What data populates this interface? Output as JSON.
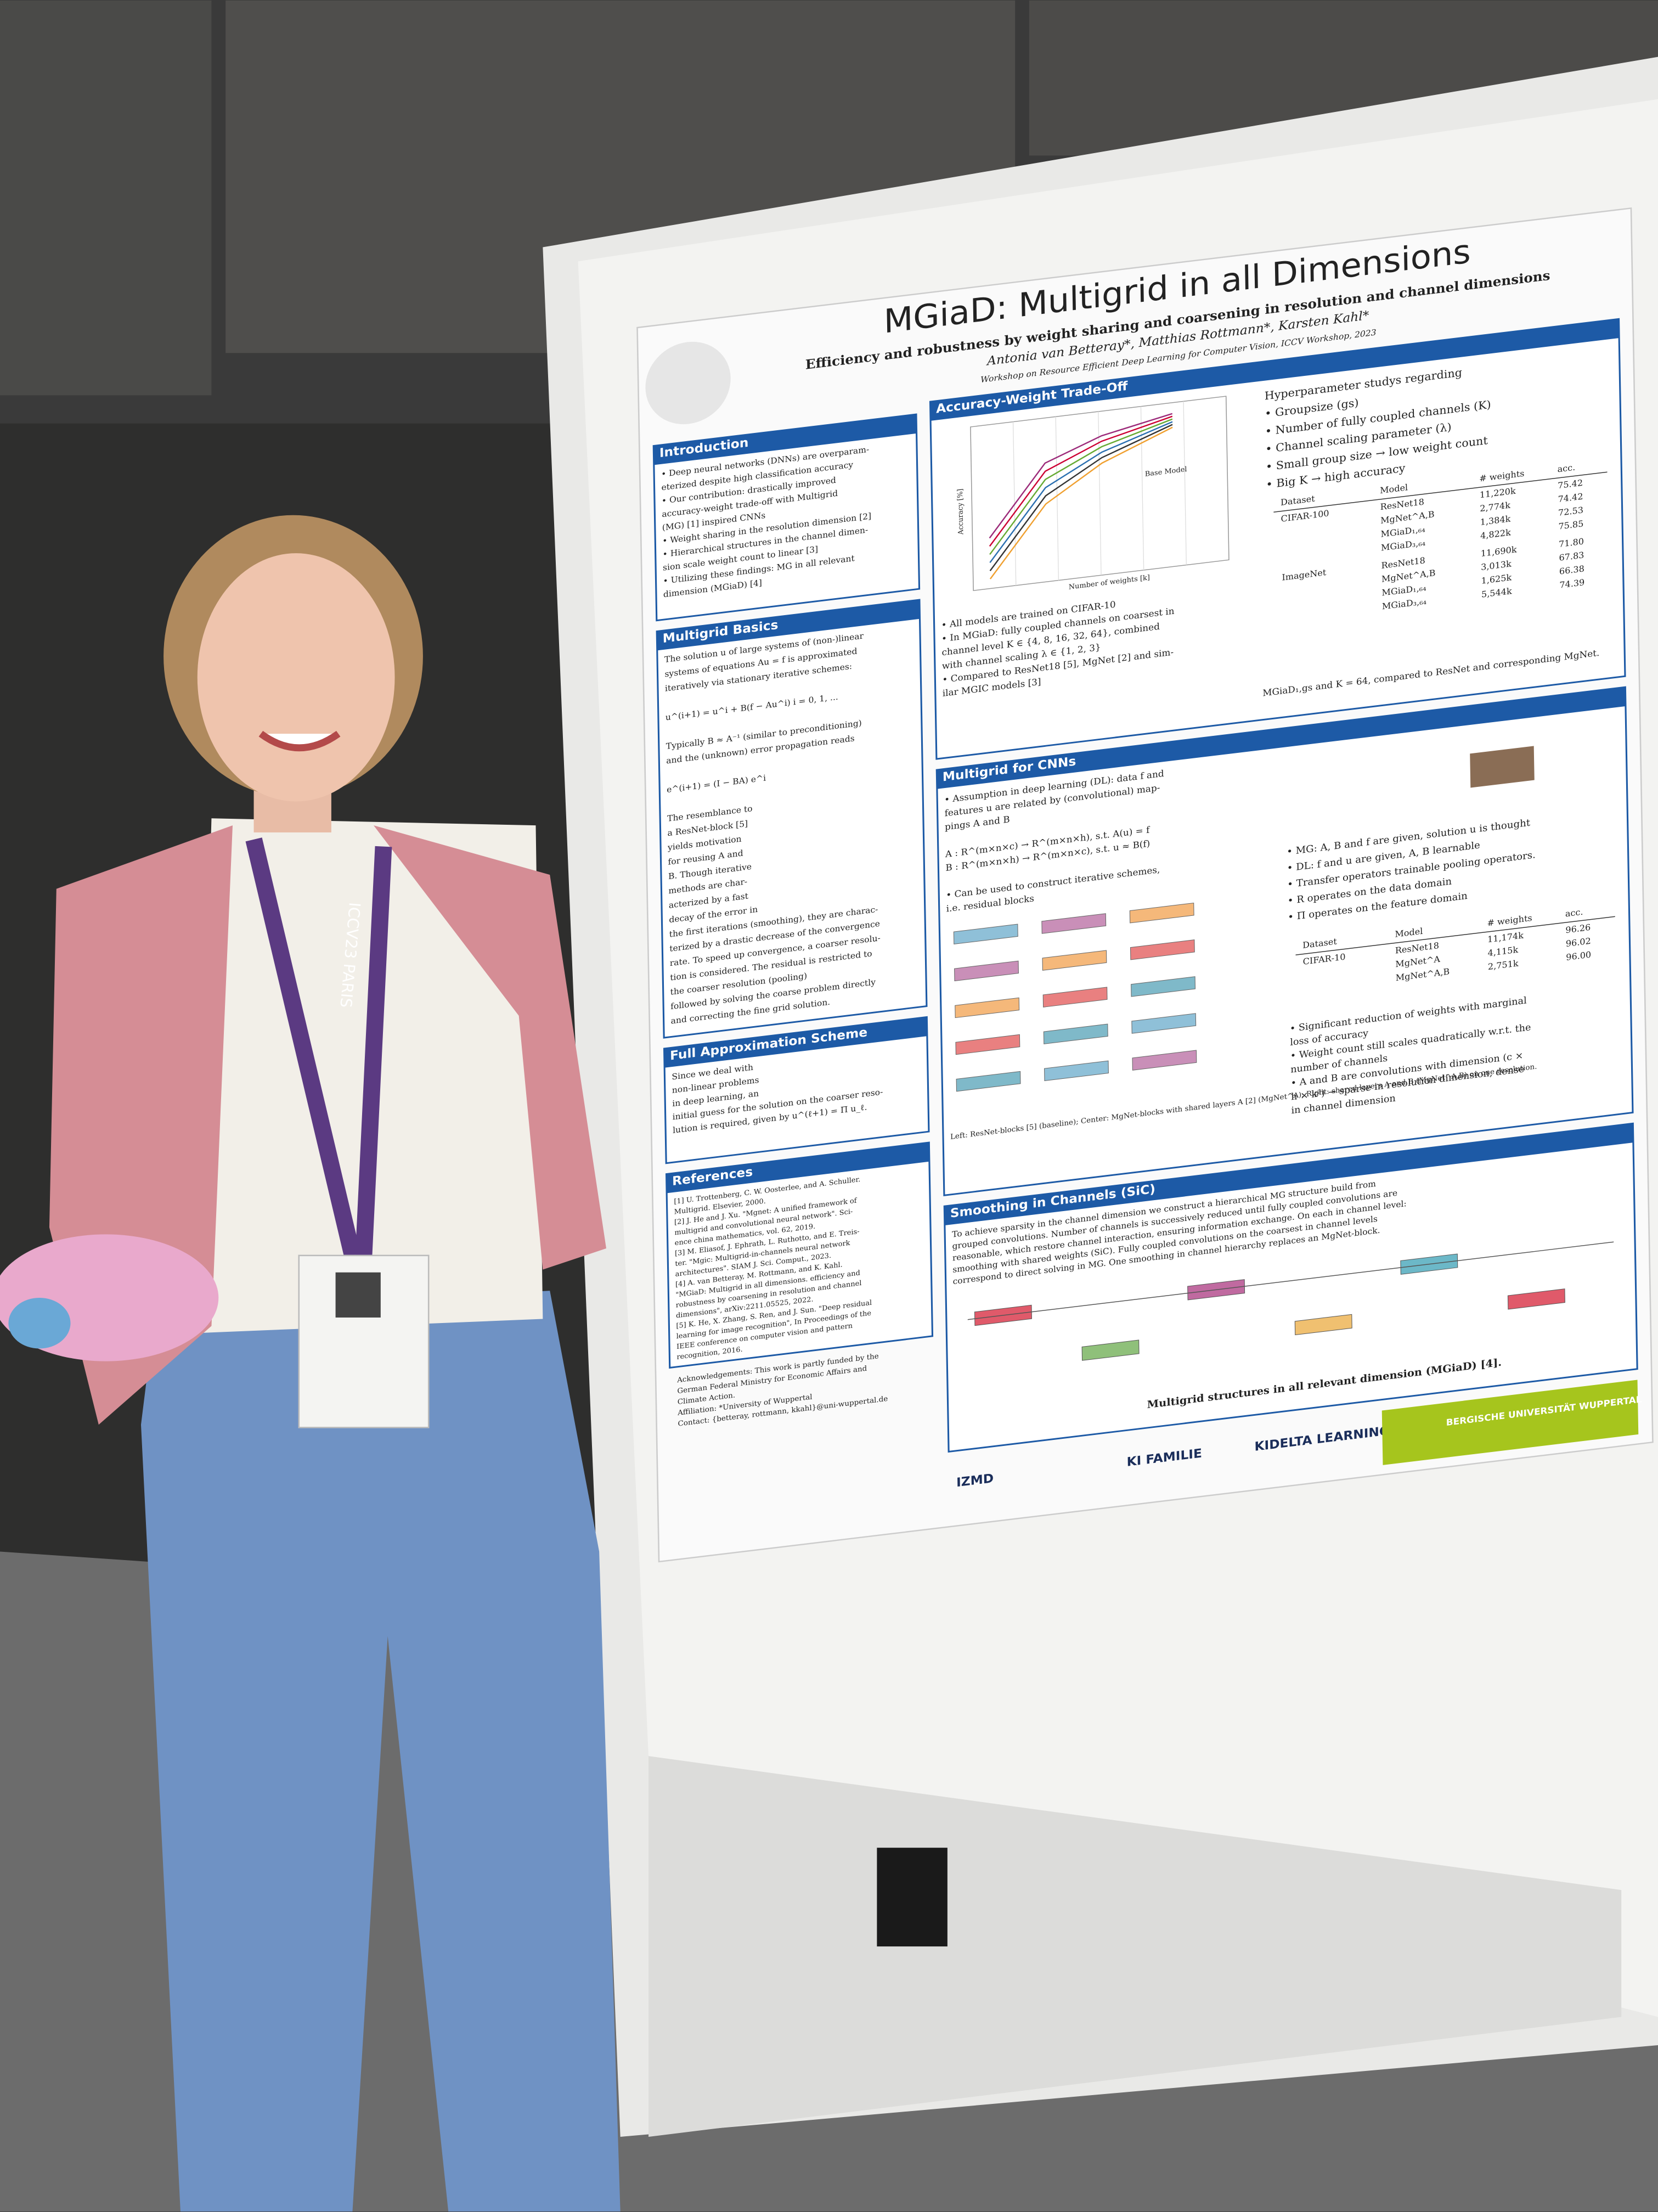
{
  "poster": {
    "title": "MGiaD: Multigrid in all Dimensions",
    "subtitle": "Efficiency and robustness by weight sharing and coarsening in resolution and channel dimensions",
    "authors": "Antonia van Betteray*, Matthias Rottmann*, Karsten Kahl*",
    "workshop": "Workshop on Resource Efficient Deep Learning for Computer Vision, ICCV Workshop, 2023",
    "sections": [
      {
        "heading": "Introduction",
        "lines": [
          "• Deep neural networks (DNNs) are overparam-",
          "  eterized despite high classification accuracy",
          "• Our contribution: drastically improved",
          "  accuracy-weight trade-off with Multigrid",
          "  (MG) [1] inspired CNNs",
          "• Weight sharing in the resolution dimension [2]",
          "• Hierarchical structures in the channel dimen-",
          "  sion scale weight count to linear [3]",
          "• Utilizing these findings: MG in all relevant",
          "  dimension (MGiaD) [4]"
        ]
      },
      {
        "heading": "Multigrid Basics",
        "lines": [
          "The solution u of large systems of (non-)linear",
          "systems of equations Au = f is approximated",
          "iteratively via stationary iterative schemes:",
          "",
          "u^(i+1) = u^i + B(f − Au^i)   i = 0, 1, ...",
          "",
          "Typically B ≈ A⁻¹ (similar to preconditioning)",
          "and the (unknown) error propagation reads",
          "",
          "e^(i+1) = (I − BA) e^i",
          "",
          "The resemblance to",
          "a ResNet-block [5]",
          "yields motivation",
          "for reusing A and",
          "B. Though iterative",
          "methods are char-",
          "acterized by a fast",
          "decay of the error in",
          "the first iterations (smoothing), they are charac-",
          "terized by a drastic decrease of the convergence",
          "rate. To speed up convergence, a coarser resolu-",
          "tion is considered. The residual is restricted to",
          "the coarser resolution (pooling)",
          "followed by solving the coarse problem directly",
          "and correcting the fine grid solution."
        ]
      },
      {
        "heading": "Full Approximation Scheme",
        "lines": [
          "Since we deal with",
          "non-linear problems",
          "in deep learning, an",
          "initial guess for the solution on the coarser reso-",
          "lution is required, given by u^(ℓ+1) = Π u_ℓ."
        ]
      },
      {
        "heading": "References",
        "lines": [
          "[1] U. Trottenberg, C. W. Oosterlee, and A. Schuller.",
          "    Multigrid. Elsevier, 2000.",
          "[2] J. He and J. Xu. \"Mgnet: A unified framework of",
          "    multigrid and convolutional neural network\". Sci-",
          "    ence china mathematics, vol. 62, 2019.",
          "[3] M. Eliasof, J. Ephrath, L. Ruthotto, and E. Treis-",
          "    ter. \"Mgic: Multigrid-in-channels neural network",
          "    architectures\". SIAM J. Sci. Comput., 2023.",
          "[4] A. van Betteray, M. Rottmann, and K. Kahl.",
          "    \"MGiaD: Multigrid in all dimensions. efficiency and",
          "    robustness by coarsening in resolution and channel",
          "    dimensions\", arXiv:2211.05525, 2022.",
          "[5] K. He, X. Zhang, S. Ren, and J. Sun. \"Deep residual",
          "    learning for image recognition\", In Proceedings of the",
          "    IEEE conference on computer vision and pattern",
          "    recognition, 2016."
        ]
      },
      {
        "heading": "Accuracy-Weight Trade-Off",
        "lines": [
          "• All models are trained on CIFAR-10",
          "• In MGiaD: fully coupled channels on coarsest in",
          "  channel level K ∈ {4, 8, 16, 32, 64}, combined",
          "  with channel scaling λ ∈ {1, 2, 3}",
          "• Compared to ResNet18 [5], MgNet [2] and sim-",
          "  ilar MGIC models [3]"
        ],
        "side": [
          "Hyperparameter studys regarding",
          "• Groupsize (gs)",
          "• Number of fully coupled channels (K)",
          "• Channel scaling parameter (λ)",
          "• Small group size → low weight count",
          "• Big K → high accuracy"
        ],
        "footer": "MGiaD₁,gs and K = 64, compared to ResNet and corresponding MgNet."
      },
      {
        "heading": "Multigrid for CNNs",
        "lines": [
          "• Assumption in deep learning (DL): data f and",
          "  features u are related by (convolutional) map-",
          "  pings A and B",
          "",
          "A : R^(m×n×c) → R^(m×n×h), s.t. A(u) = f",
          "B : R^(m×n×h) → R^(m×n×c), s.t. u ≈ B(f)",
          "",
          "• Can be used to construct iterative schemes,",
          "  i.e. residual blocks"
        ],
        "side": [
          "• MG: A, B and f are given, solution u is thought",
          "• DL: f and u are given, A, B learnable",
          "• Transfer operators trainable pooling operators.",
          "• R operates on the data domain",
          "• Π operates on the feature domain"
        ],
        "footer": "Left: ResNet-blocks [5] (baseline); Center: MgNet-blocks with shared layers A [2] (MgNet^A); Right: shared layers A and B (MgNet^A,B) on one resolution.",
        "notes": [
          "• Significant reduction of weights with marginal",
          "  loss of accuracy",
          "• Weight count still scales quadratically w.r.t. the",
          "  number of channels",
          "• A and B are convolutions with dimension (c ×",
          "  h × k²) → sparse in resolution dimension, dense",
          "  in channel dimension"
        ]
      },
      {
        "heading": "Smoothing in Channels (SiC)",
        "lines": [
          "To achieve sparsity in the channel dimension we construct a hierarchical MG structure build from",
          "grouped convolutions. Number of channels is successively reduced until fully coupled convolutions are",
          "reasonable, which restore channel interaction, ensuring information exchange. On each in channel level:",
          "smoothing with shared weights (SiC). Fully coupled convolutions on the coarsest in channel levels",
          "correspond to direct solving in MG. One smoothing in channel hierarchy replaces an MgNet-block."
        ],
        "footer": "Multigrid structures in all relevant dimension (MGiaD) [4]."
      }
    ],
    "table1": {
      "header": [
        "Dataset",
        "Model",
        "# weights",
        "acc."
      ],
      "rows": [
        [
          "CIFAR-100",
          "ResNet18",
          "11,220k",
          "75.42"
        ],
        [
          "",
          "MgNet^A,B",
          "2,774k",
          "74.42"
        ],
        [
          "",
          "MGiaD₁,₆₄",
          "1,384k",
          "72.53"
        ],
        [
          "",
          "MGiaD₃,₆₄",
          "4,822k",
          "75.85"
        ],
        [
          "ImageNet",
          "ResNet18",
          "11,690k",
          "71.80"
        ],
        [
          "",
          "MgNet^A,B",
          "3,013k",
          "67.83"
        ],
        [
          "",
          "MGiaD₁,₆₄",
          "1,625k",
          "66.38"
        ],
        [
          "",
          "MGiaD₃,₆₄",
          "5,544k",
          "74.39"
        ]
      ]
    },
    "table2": {
      "header": [
        "Dataset",
        "Model",
        "# weights",
        "acc."
      ],
      "rows": [
        [
          "CIFAR-10",
          "ResNet18",
          "11,174k",
          "96.26"
        ],
        [
          "",
          "MgNet^A",
          "4,115k",
          "96.02"
        ],
        [
          "",
          "MgNet^A,B",
          "2,751k",
          "96.00"
        ]
      ]
    },
    "plot": {
      "xlabel": "Number of weights [k]",
      "ylabel": "Accuracy [%]",
      "legend_title": "Base Model"
    },
    "acknowledgements": [
      "Acknowledgements: This work is partly funded by the",
      "German Federal Ministry for Economic Affairs and",
      "Climate Action.",
      "Affiliation: *University of Wuppertal",
      "Contact: {betteray, rottmann, kkahl}@uni-wuppertal.de"
    ],
    "logos": [
      "IZMD",
      "KI FAMILIE",
      "KIDELTA LEARNING",
      "BERGISCHE UNIVERSITÄT WUPPERTAL"
    ]
  },
  "lanyard": "ICCV23 PARIS"
}
